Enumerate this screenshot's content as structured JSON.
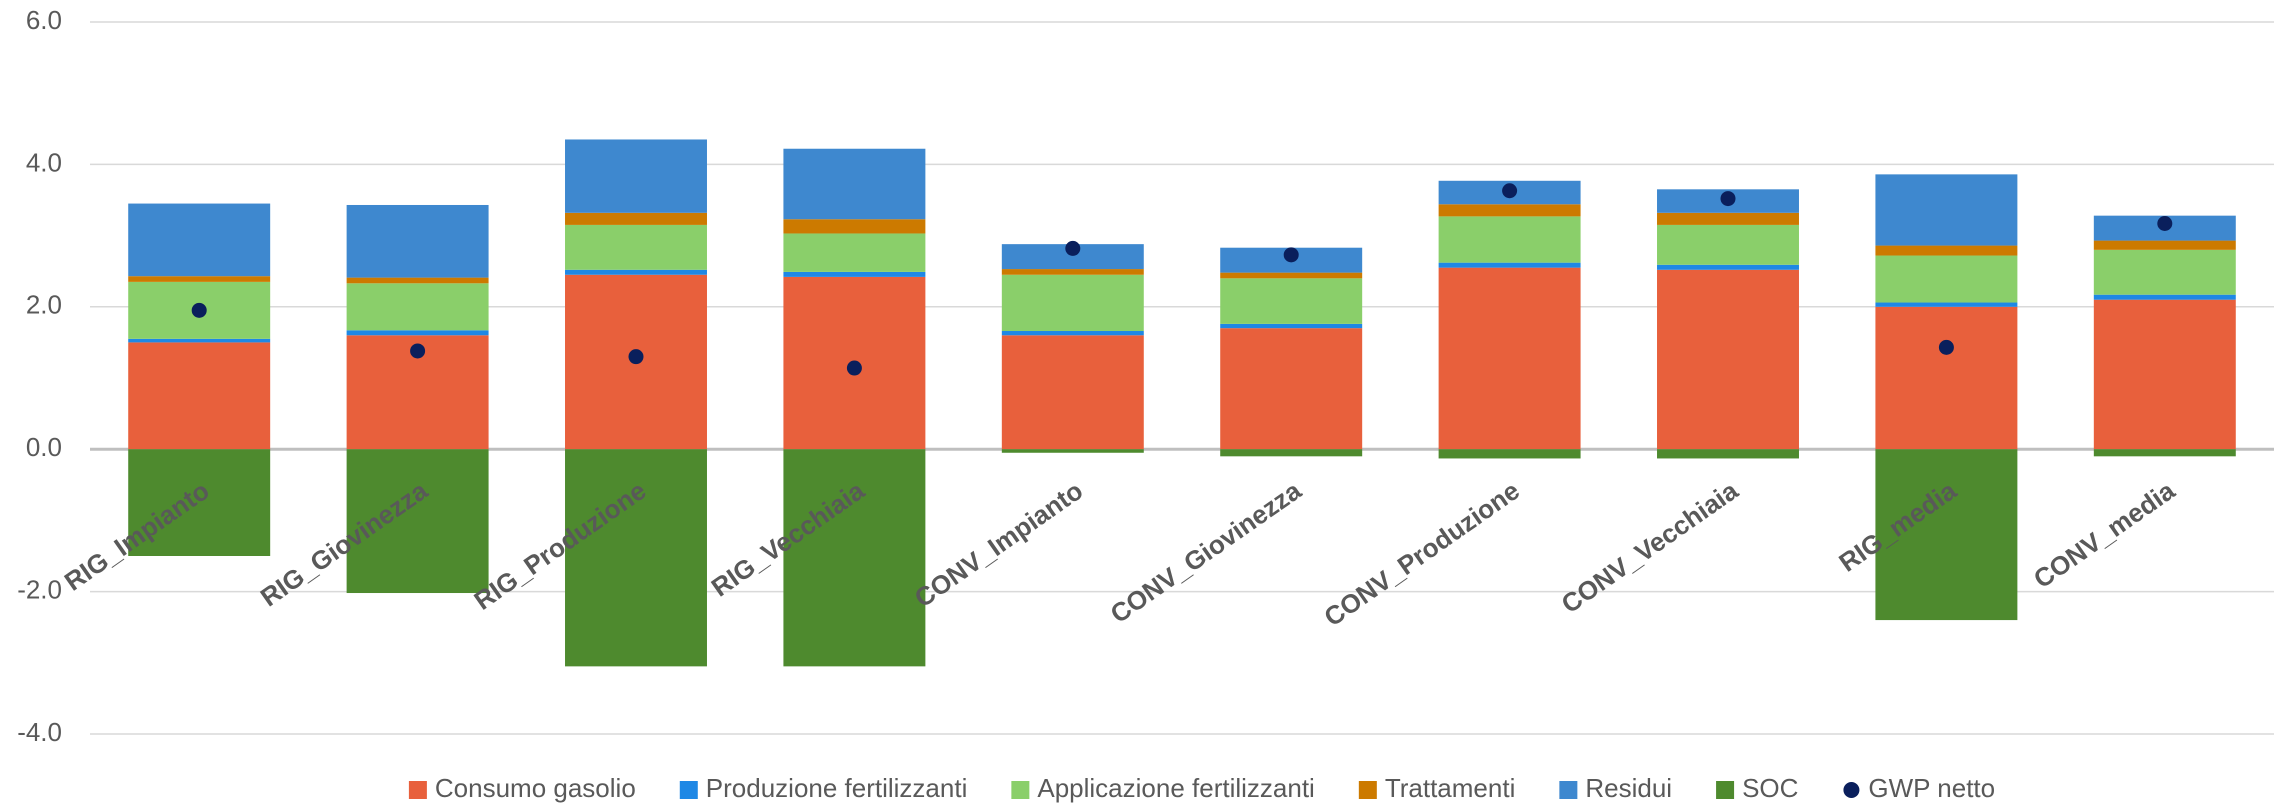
{
  "chart_data": {
    "type": "stacked_bar",
    "categories": [
      "RIG_Impianto",
      "RIG_Giovinezza",
      "RIG_Produzione",
      "RIG_Vecchiaia",
      "CONV_Impianto",
      "CONV_Giovinezza",
      "CONV_Produzione",
      "CONV_Vecchiaia",
      "RIG_media",
      "CONV_media"
    ],
    "series": [
      {
        "name": "Consumo gasolio",
        "color": "#E8603C",
        "values": [
          1.5,
          1.6,
          2.45,
          2.42,
          1.6,
          1.7,
          2.55,
          2.52,
          2.0,
          2.1
        ]
      },
      {
        "name": "Produzione fertilizzanti",
        "color": "#1E88E5",
        "values": [
          0.05,
          0.07,
          0.07,
          0.07,
          0.06,
          0.06,
          0.07,
          0.07,
          0.06,
          0.07
        ]
      },
      {
        "name": "Applicazione fertilizzanti",
        "color": "#8ACF6A",
        "values": [
          0.8,
          0.66,
          0.63,
          0.54,
          0.79,
          0.64,
          0.65,
          0.56,
          0.66,
          0.63
        ]
      },
      {
        "name": "Trattamenti",
        "color": "#CC7A00",
        "values": [
          0.08,
          0.08,
          0.17,
          0.2,
          0.08,
          0.08,
          0.17,
          0.17,
          0.14,
          0.13
        ]
      },
      {
        "name": "Residui",
        "color": "#3E88CF",
        "values": [
          1.02,
          1.02,
          1.03,
          0.99,
          0.35,
          0.35,
          0.33,
          0.33,
          1.0,
          0.35
        ]
      },
      {
        "name": "SOC",
        "color": "#4E8A2E",
        "values": [
          -1.5,
          -2.02,
          -3.05,
          -3.05,
          -0.05,
          -0.1,
          -0.13,
          -0.13,
          -2.4,
          -0.1
        ]
      },
      {
        "name": "GWP netto",
        "color": "#0A1F5C",
        "kind": "dot",
        "values": [
          1.95,
          1.38,
          1.3,
          1.14,
          2.82,
          2.73,
          3.63,
          3.52,
          1.43,
          3.17
        ]
      }
    ],
    "ylim": [
      -4,
      6
    ],
    "yticks": [
      {
        "value": -4,
        "label": "-4.0"
      },
      {
        "value": -2,
        "label": "-2.0"
      },
      {
        "value": 0,
        "label": "0.0"
      },
      {
        "value": 2,
        "label": "2.0"
      },
      {
        "value": 4,
        "label": "4.0"
      },
      {
        "value": 6,
        "label": "6.0"
      }
    ],
    "grid": true,
    "legend": "bottom"
  }
}
